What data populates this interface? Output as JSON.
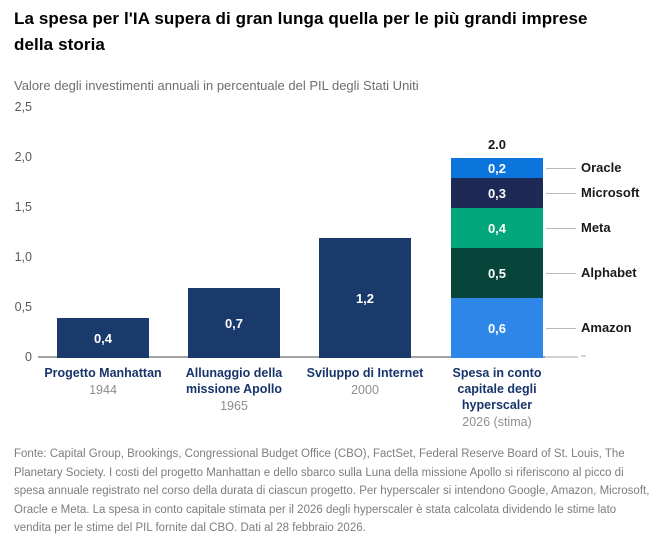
{
  "title": "La spesa per l'IA supera di gran lunga quella per le più grandi imprese della storia",
  "subtitle": "Valore degli investimenti annuali in percentuale del PIL degli Stati Uniti",
  "footer": "Fonte: Capital Group, Brookings, Congressional Budget Office (CBO), FactSet, Federal Reserve Board of St. Louis, The Planetary Society. I costi del progetto Manhattan e dello sbarco sulla Luna della missione Apollo si riferiscono al picco di spesa annuale registrato nel corso della durata di ciascun progetto. Per hyperscaler si intendono Google, Amazon, Microsoft, Oracle e Meta. La spesa in conto capitale stimata per il 2026 degli hyperscaler è stata calcolata dividendo le stime lato vendita per le stime del PIL fornite dal CBO. Dati al 28 febbraio 2026.",
  "colors": {
    "bar_navy": "#1b3a6c",
    "amazon_blue": "#2e87e8",
    "alphabet_dark_green": "#07453a",
    "meta_green": "#04a67c",
    "microsoft_navy": "#1c2a55",
    "oracle_blue": "#0b74dd",
    "axis_gray": "#a3a3a3",
    "text_gray": "#6e6e6e"
  },
  "chart_data": {
    "type": "bar",
    "title": "La spesa per l'IA supera di gran lunga quella per le più grandi imprese della storia",
    "subtitle_as_ylabel": "Valore degli investimenti annuali in percentuale del PIL degli Stati Uniti",
    "xlabel": "",
    "ylabel": "",
    "ylim": [
      0,
      2.5
    ],
    "grid": false,
    "legend_position": "right",
    "bar_color": "#1b3a6c",
    "yticks": [
      {
        "label": "2,5",
        "value": 2.5
      },
      {
        "label": "2,0",
        "value": 2.0
      },
      {
        "label": "1,5",
        "value": 1.5
      },
      {
        "label": "1,0",
        "value": 1.0
      },
      {
        "label": "0,5",
        "value": 0.5
      },
      {
        "label": "0",
        "value": 0
      }
    ],
    "categories": [
      "Progetto Manhattan",
      "Allunaggio della missione Apollo",
      "Sviluppo di Internet",
      "Spesa in conto capitale degli hyperscaler"
    ],
    "bars": [
      {
        "label": "Progetto Manhattan",
        "year": "1944",
        "value": 0.4,
        "value_label": "0,4"
      },
      {
        "label": "Allunaggio della missione Apollo",
        "year": "1965",
        "value": 0.7,
        "value_label": "0,7"
      },
      {
        "label": "Sviluppo di Internet",
        "year": "2000",
        "value": 1.2,
        "value_label": "1,2"
      },
      {
        "label": "Spesa in conto capitale degli hyperscaler",
        "year": "2026 (stima)",
        "total": 2.0,
        "total_label": "2.0",
        "segments": [
          {
            "name": "Amazon",
            "value": 0.6,
            "value_label": "0,6",
            "color": "#2e87e8"
          },
          {
            "name": "Alphabet",
            "value": 0.5,
            "value_label": "0,5",
            "color": "#07453a"
          },
          {
            "name": "Meta",
            "value": 0.4,
            "value_label": "0,4",
            "color": "#04a67c"
          },
          {
            "name": "Microsoft",
            "value": 0.3,
            "value_label": "0,3",
            "color": "#1c2a55"
          },
          {
            "name": "Oracle",
            "value": 0.2,
            "value_label": "0,2",
            "color": "#0b74dd"
          }
        ]
      }
    ]
  }
}
